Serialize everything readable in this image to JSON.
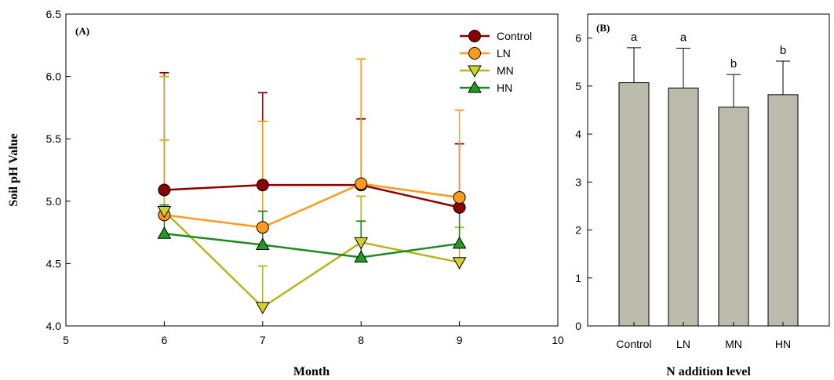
{
  "chart_data": [
    {
      "panel_label": "(A)",
      "type": "line",
      "xlabel": "Month",
      "ylabel": "Soil pH Value",
      "xlim": [
        5,
        10
      ],
      "ylim": [
        4.0,
        6.5
      ],
      "xticks": [
        "5",
        "6",
        "7",
        "8",
        "9",
        "10"
      ],
      "yticks": [
        "4.0",
        "4.5",
        "5.0",
        "5.5",
        "6.0",
        "6.5"
      ],
      "x": [
        6,
        7,
        8,
        9
      ],
      "legend_position": "top-right",
      "series": [
        {
          "name": "Control",
          "marker": "circle",
          "color": "#8b0000",
          "fill": "#8b0000",
          "values": [
            5.09,
            5.13,
            5.13,
            4.95
          ],
          "error_upper": [
            6.03,
            5.87,
            5.66,
            5.46
          ]
        },
        {
          "name": "LN",
          "marker": "circle",
          "color": "#ff9a1a",
          "fill": "#ff9a1a",
          "values": [
            4.89,
            4.79,
            5.14,
            5.03
          ],
          "error_upper": [
            5.49,
            5.64,
            6.14,
            5.73
          ]
        },
        {
          "name": "MN",
          "marker": "triangle-down",
          "color": "#b5b51c",
          "fill": "#d3d322",
          "values": [
            4.92,
            4.15,
            4.67,
            4.51
          ],
          "error_upper": [
            6.0,
            4.48,
            5.04,
            4.79
          ]
        },
        {
          "name": "HN",
          "marker": "triangle-up",
          "color": "#1e8a1e",
          "fill": "#1e9e1e",
          "values": [
            4.74,
            4.65,
            4.55,
            4.66
          ],
          "error_upper": [
            4.97,
            4.92,
            4.84,
            4.96
          ]
        }
      ]
    },
    {
      "panel_label": "(B)",
      "type": "bar",
      "xlabel": "N addition level",
      "ylabel": "",
      "ylim": [
        0,
        6.5
      ],
      "yticks": [
        "0",
        "1",
        "2",
        "3",
        "4",
        "5",
        "6"
      ],
      "categories": [
        "Control",
        "LN",
        "MN",
        "HN"
      ],
      "values": [
        5.07,
        4.96,
        4.56,
        4.82
      ],
      "error_upper": [
        5.8,
        5.79,
        5.24,
        5.52
      ],
      "significance_labels": [
        "a",
        "a",
        "b",
        "b"
      ],
      "bar_color": "#bbbcac"
    }
  ]
}
